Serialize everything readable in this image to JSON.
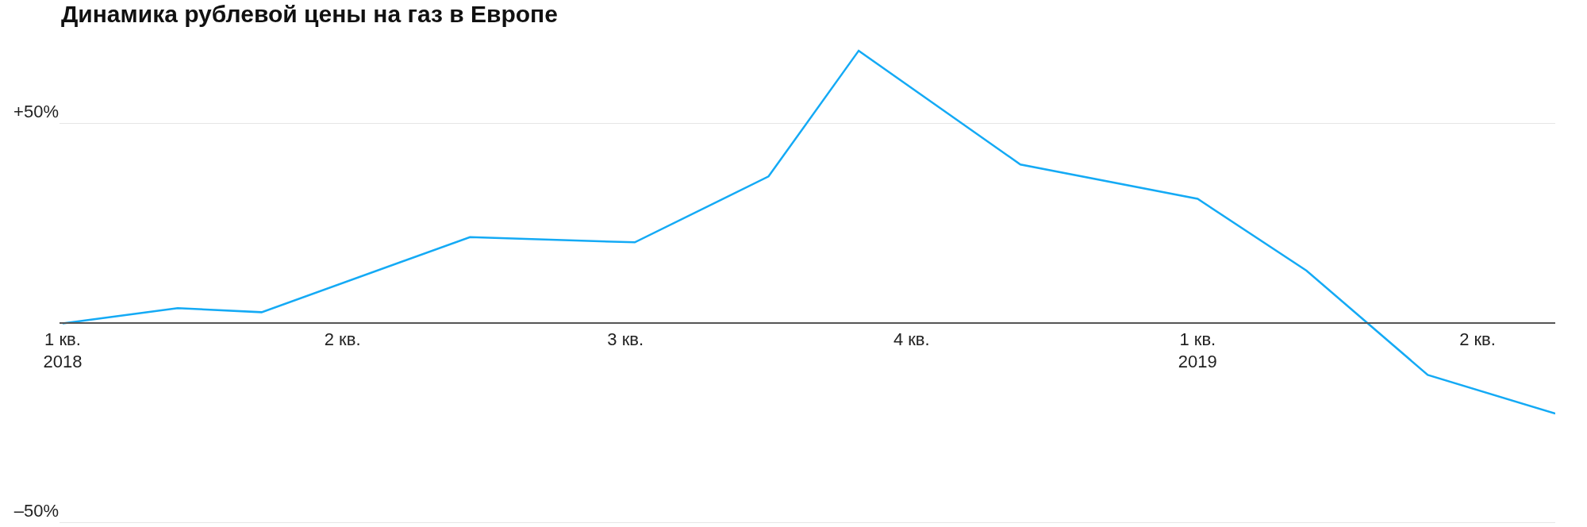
{
  "chart_data": {
    "type": "line",
    "title": "Динамика рублевой цены на газ в Европе",
    "x": [
      "2018-01-01",
      "2018-02-07",
      "2018-03-06",
      "2018-05-12",
      "2018-07-04",
      "2018-08-16",
      "2018-09-14",
      "2018-11-05",
      "2019-01-01",
      "2019-02-05",
      "2019-03-16",
      "2019-04-26"
    ],
    "series": [
      {
        "color": "#14aaf5",
        "values": [
          0,
          3.8,
          2.8,
          21.6,
          20.3,
          36.8,
          68.3,
          39.8,
          31.2,
          13.2,
          -12.9,
          -22.6
        ]
      }
    ],
    "xlim": [
      "2017-12-31",
      "2019-04-26"
    ],
    "xticks": [
      {
        "value": "2018-01-01",
        "label": "1 кв.\n2018"
      },
      {
        "value": "2018-04-01",
        "label": "2 кв."
      },
      {
        "value": "2018-07-01",
        "label": "3 кв."
      },
      {
        "value": "2018-10-01",
        "label": "4 кв."
      },
      {
        "value": "2019-01-01",
        "label": "1 кв.\n2019"
      },
      {
        "value": "2019-04-01",
        "label": "2 кв."
      }
    ],
    "ylim": [
      -51,
      81
    ],
    "yticks": [
      {
        "value": 50,
        "label": "+50%"
      },
      {
        "value": -50,
        "label": "–50%"
      }
    ],
    "grid": "y",
    "marker": "none",
    "line_style": "solid"
  }
}
